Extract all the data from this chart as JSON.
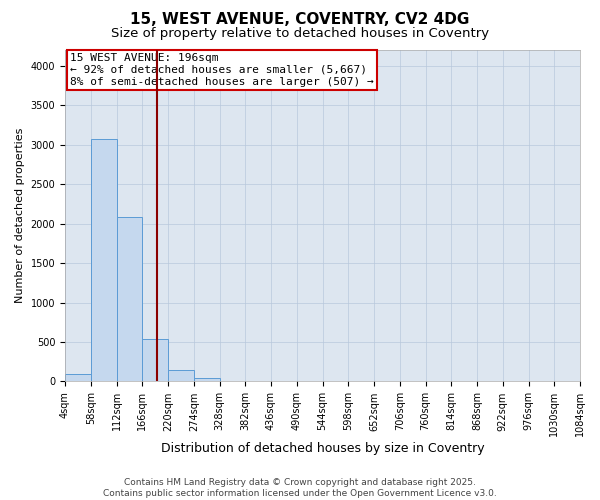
{
  "title": "15, WEST AVENUE, COVENTRY, CV2 4DG",
  "subtitle": "Size of property relative to detached houses in Coventry",
  "xlabel": "Distribution of detached houses by size in Coventry",
  "ylabel": "Number of detached properties",
  "bar_bins": [
    4,
    58,
    112,
    166,
    220,
    274,
    328,
    382,
    436,
    490,
    544,
    598,
    652,
    706,
    760,
    814,
    868,
    922,
    976,
    1030,
    1084
  ],
  "bar_values": [
    100,
    3070,
    2080,
    540,
    140,
    50,
    10,
    0,
    0,
    0,
    0,
    0,
    0,
    0,
    0,
    0,
    0,
    0,
    0,
    0
  ],
  "bar_color": "#c5d8ee",
  "bar_edgecolor": "#5b9bd5",
  "vline_x": 196,
  "vline_color": "#8b0000",
  "annotation_line1": "15 WEST AVENUE: 196sqm",
  "annotation_line2": "← 92% of detached houses are smaller (5,667)",
  "annotation_line3": "8% of semi-detached houses are larger (507) →",
  "annotation_box_color": "#cc0000",
  "ylim": [
    0,
    4200
  ],
  "yticks": [
    0,
    500,
    1000,
    1500,
    2000,
    2500,
    3000,
    3500,
    4000
  ],
  "background_color": "#dde6f0",
  "footer_text": "Contains HM Land Registry data © Crown copyright and database right 2025.\nContains public sector information licensed under the Open Government Licence v3.0.",
  "title_fontsize": 11,
  "subtitle_fontsize": 9.5,
  "xlabel_fontsize": 9,
  "ylabel_fontsize": 8,
  "tick_fontsize": 7,
  "annotation_fontsize": 8,
  "footer_fontsize": 6.5,
  "grid_color": "#b8c8dc"
}
